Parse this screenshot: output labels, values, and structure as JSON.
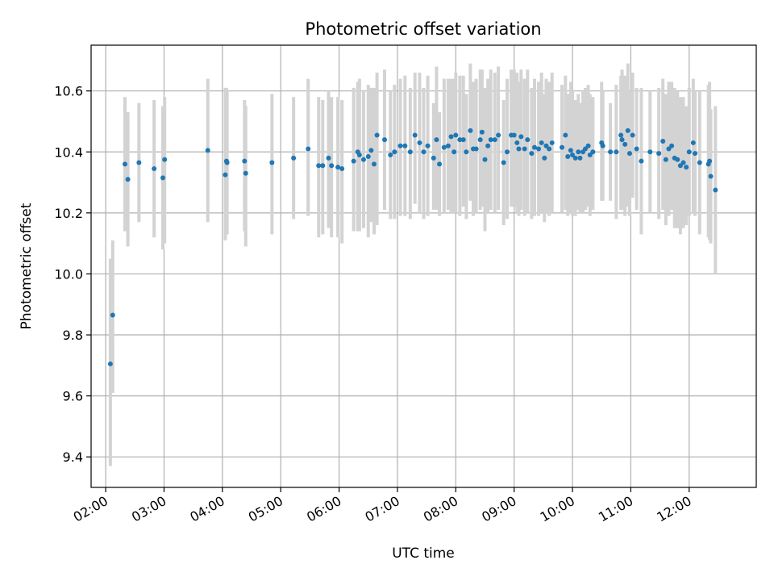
{
  "chart_data": {
    "type": "scatter",
    "title": "Photometric offset variation",
    "xlabel": "UTC time",
    "ylabel": "Photometric offset",
    "xlim": [
      1.75,
      13.15
    ],
    "ylim": [
      9.3,
      10.75
    ],
    "xticks": [
      2,
      3,
      4,
      5,
      6,
      7,
      8,
      9,
      10,
      11,
      12
    ],
    "xtick_labels": [
      "02:00",
      "03:00",
      "04:00",
      "05:00",
      "06:00",
      "07:00",
      "08:00",
      "09:00",
      "10:00",
      "11:00",
      "12:00"
    ],
    "yticks": [
      9.4,
      9.6,
      9.8,
      10.0,
      10.2,
      10.4,
      10.6
    ],
    "ytick_labels": [
      "9.4",
      "9.6",
      "9.8",
      "10.0",
      "10.2",
      "10.4",
      "10.6"
    ],
    "grid": true,
    "colors": {
      "point": "#1f77b4",
      "errorbar": "#d3d3d3",
      "grid": "#b0b0b0",
      "axes": "#000000"
    },
    "series": [
      {
        "name": "offset",
        "x": [
          2.08,
          2.12,
          2.33,
          2.38,
          2.57,
          2.83,
          2.98,
          3.01,
          3.75,
          4.05,
          4.07,
          4.08,
          4.38,
          4.4,
          4.85,
          5.22,
          5.47,
          5.65,
          5.72,
          5.82,
          5.87,
          5.98,
          6.05,
          6.25,
          6.32,
          6.35,
          6.42,
          6.5,
          6.55,
          6.6,
          6.65,
          6.78,
          6.88,
          6.95,
          7.05,
          7.13,
          7.22,
          7.3,
          7.38,
          7.45,
          7.52,
          7.62,
          7.67,
          7.72,
          7.8,
          7.87,
          7.92,
          7.97,
          8.0,
          8.07,
          8.13,
          8.18,
          8.25,
          8.3,
          8.35,
          8.42,
          8.45,
          8.5,
          8.55,
          8.6,
          8.67,
          8.73,
          8.82,
          8.88,
          8.95,
          9.0,
          9.05,
          9.08,
          9.12,
          9.18,
          9.23,
          9.3,
          9.35,
          9.42,
          9.47,
          9.52,
          9.55,
          9.6,
          9.65,
          9.82,
          9.88,
          9.92,
          9.97,
          10.0,
          10.05,
          10.1,
          10.13,
          10.18,
          10.22,
          10.27,
          10.3,
          10.35,
          10.5,
          10.52,
          10.65,
          10.75,
          10.83,
          10.85,
          10.9,
          10.95,
          10.98,
          11.03,
          11.1,
          11.18,
          11.33,
          11.48,
          11.55,
          11.6,
          11.65,
          11.7,
          11.75,
          11.8,
          11.85,
          11.9,
          11.95,
          12.0,
          12.07,
          12.1,
          12.18,
          12.33,
          12.35,
          12.37,
          12.45
        ],
        "y": [
          9.705,
          9.865,
          10.36,
          10.31,
          10.365,
          10.345,
          10.315,
          10.375,
          10.405,
          10.325,
          10.37,
          10.365,
          10.37,
          10.33,
          10.365,
          10.38,
          10.41,
          10.355,
          10.355,
          10.38,
          10.355,
          10.35,
          10.345,
          10.37,
          10.4,
          10.39,
          10.375,
          10.385,
          10.405,
          10.36,
          10.455,
          10.44,
          10.39,
          10.4,
          10.42,
          10.42,
          10.4,
          10.455,
          10.43,
          10.4,
          10.42,
          10.38,
          10.44,
          10.36,
          10.415,
          10.42,
          10.45,
          10.4,
          10.455,
          10.44,
          10.44,
          10.4,
          10.47,
          10.41,
          10.41,
          10.44,
          10.465,
          10.375,
          10.42,
          10.44,
          10.44,
          10.455,
          10.365,
          10.4,
          10.455,
          10.455,
          10.43,
          10.41,
          10.45,
          10.41,
          10.44,
          10.395,
          10.415,
          10.41,
          10.43,
          10.38,
          10.42,
          10.41,
          10.43,
          10.415,
          10.455,
          10.385,
          10.405,
          10.39,
          10.38,
          10.4,
          10.38,
          10.4,
          10.41,
          10.42,
          10.39,
          10.4,
          10.43,
          10.42,
          10.4,
          10.4,
          10.455,
          10.44,
          10.425,
          10.47,
          10.395,
          10.455,
          10.41,
          10.37,
          10.4,
          10.395,
          10.435,
          10.375,
          10.41,
          10.42,
          10.38,
          10.375,
          10.355,
          10.365,
          10.35,
          10.4,
          10.43,
          10.395,
          10.365,
          10.36,
          10.37,
          10.32,
          10.275
        ],
        "yerr_low": [
          9.37,
          9.61,
          10.14,
          10.09,
          10.17,
          10.12,
          10.08,
          10.1,
          10.17,
          10.11,
          10.13,
          10.13,
          10.14,
          10.09,
          10.13,
          10.18,
          10.19,
          10.12,
          10.13,
          10.15,
          10.12,
          10.12,
          10.1,
          10.14,
          10.14,
          10.14,
          10.15,
          10.12,
          10.17,
          10.13,
          10.16,
          10.21,
          10.18,
          10.18,
          10.19,
          10.19,
          10.18,
          10.23,
          10.2,
          10.18,
          10.19,
          10.21,
          10.21,
          10.19,
          10.2,
          10.21,
          10.2,
          10.2,
          10.2,
          10.19,
          10.22,
          10.18,
          10.24,
          10.19,
          10.2,
          10.21,
          10.22,
          10.14,
          10.2,
          10.21,
          10.2,
          10.21,
          10.16,
          10.18,
          10.22,
          10.22,
          10.2,
          10.19,
          10.21,
          10.19,
          10.2,
          10.18,
          10.19,
          10.19,
          10.2,
          10.17,
          10.2,
          10.19,
          10.2,
          10.2,
          10.21,
          10.19,
          10.2,
          10.19,
          10.19,
          10.21,
          10.2,
          10.2,
          10.21,
          10.22,
          10.19,
          10.21,
          10.24,
          10.24,
          10.24,
          10.18,
          10.21,
          10.21,
          10.19,
          10.22,
          10.19,
          10.25,
          10.21,
          10.13,
          10.2,
          10.18,
          10.21,
          10.16,
          10.19,
          10.21,
          10.15,
          10.15,
          10.13,
          10.15,
          10.16,
          10.19,
          10.2,
          10.19,
          10.13,
          10.12,
          10.11,
          10.1,
          10.0
        ],
        "yerr_high": [
          10.05,
          10.11,
          10.58,
          10.53,
          10.56,
          10.57,
          10.55,
          10.58,
          10.64,
          10.61,
          10.61,
          10.6,
          10.57,
          10.55,
          10.59,
          10.58,
          10.64,
          10.58,
          10.57,
          10.6,
          10.58,
          10.58,
          10.57,
          10.61,
          10.63,
          10.64,
          10.6,
          10.62,
          10.61,
          10.61,
          10.66,
          10.67,
          10.6,
          10.62,
          10.64,
          10.65,
          10.61,
          10.66,
          10.66,
          10.61,
          10.65,
          10.56,
          10.68,
          10.53,
          10.64,
          10.64,
          10.64,
          10.64,
          10.66,
          10.65,
          10.65,
          10.59,
          10.69,
          10.63,
          10.64,
          10.67,
          10.67,
          10.61,
          10.64,
          10.67,
          10.66,
          10.68,
          10.57,
          10.64,
          10.67,
          10.67,
          10.66,
          10.63,
          10.67,
          10.64,
          10.67,
          10.61,
          10.64,
          10.63,
          10.66,
          10.59,
          10.64,
          10.63,
          10.66,
          10.62,
          10.65,
          10.59,
          10.63,
          10.6,
          10.57,
          10.59,
          10.56,
          10.6,
          10.61,
          10.62,
          10.59,
          10.58,
          10.63,
          10.6,
          10.56,
          10.62,
          10.65,
          10.67,
          10.65,
          10.69,
          10.6,
          10.66,
          10.61,
          10.61,
          10.6,
          10.61,
          10.64,
          10.59,
          10.63,
          10.63,
          10.61,
          10.6,
          10.58,
          10.58,
          10.55,
          10.61,
          10.64,
          10.6,
          10.6,
          10.62,
          10.63,
          10.54,
          10.55
        ]
      }
    ]
  }
}
